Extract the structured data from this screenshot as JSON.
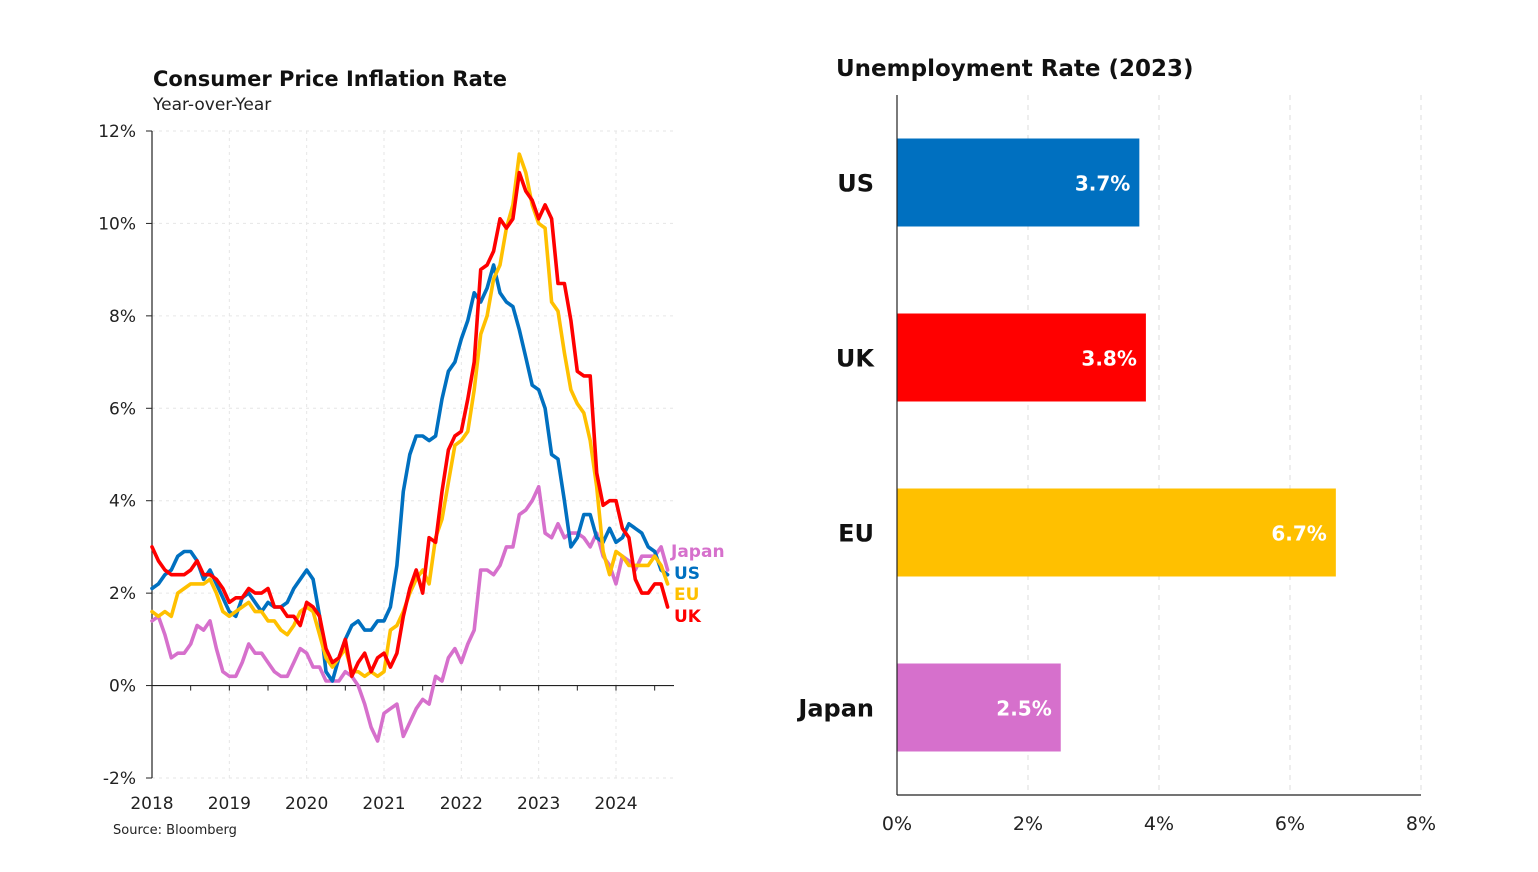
{
  "chart_data": [
    {
      "type": "line",
      "title": "Consumer Price Inflation Rate",
      "subtitle": "Year-over-Year",
      "source": "Source: Bloomberg",
      "xlabel": "",
      "ylabel": "",
      "xlim": [
        2018,
        2024.75
      ],
      "ylim": [
        -2,
        12
      ],
      "yticks": [
        -2,
        0,
        2,
        4,
        6,
        8,
        10,
        12
      ],
      "ytick_labels": [
        "-2%",
        "0%",
        "2%",
        "4%",
        "6%",
        "8%",
        "10%",
        "12%"
      ],
      "xticks": [
        2018,
        2019,
        2020,
        2021,
        2022,
        2023,
        2024
      ],
      "xtick_labels": [
        "2018",
        "2019",
        "2020",
        "2021",
        "2022",
        "2023",
        "2024"
      ],
      "grid": true,
      "x_points": "monthly from 2018.0 in steps of 1/12",
      "series": [
        {
          "name": "Japan",
          "color": "#D670CC",
          "values": [
            1.4,
            1.5,
            1.1,
            0.6,
            0.7,
            0.7,
            0.9,
            1.3,
            1.2,
            1.4,
            0.8,
            0.3,
            0.2,
            0.2,
            0.5,
            0.9,
            0.7,
            0.7,
            0.5,
            0.3,
            0.2,
            0.2,
            0.5,
            0.8,
            0.7,
            0.4,
            0.4,
            0.1,
            0.1,
            0.1,
            0.3,
            0.2,
            0.0,
            -0.4,
            -0.9,
            -1.2,
            -0.6,
            -0.5,
            -0.4,
            -1.1,
            -0.8,
            -0.5,
            -0.3,
            -0.4,
            0.2,
            0.1,
            0.6,
            0.8,
            0.5,
            0.9,
            1.2,
            2.5,
            2.5,
            2.4,
            2.6,
            3.0,
            3.0,
            3.7,
            3.8,
            4.0,
            4.3,
            3.3,
            3.2,
            3.5,
            3.2,
            3.3,
            3.3,
            3.2,
            3.0,
            3.3,
            2.8,
            2.6,
            2.2,
            2.8,
            2.7,
            2.5,
            2.8,
            2.8,
            2.8,
            3.0,
            2.5
          ]
        },
        {
          "name": "US",
          "color": "#0070C0",
          "values": [
            2.1,
            2.2,
            2.4,
            2.5,
            2.8,
            2.9,
            2.9,
            2.7,
            2.3,
            2.5,
            2.2,
            1.9,
            1.6,
            1.5,
            1.9,
            2.0,
            1.8,
            1.6,
            1.8,
            1.7,
            1.7,
            1.8,
            2.1,
            2.3,
            2.5,
            2.3,
            1.5,
            0.3,
            0.1,
            0.6,
            1.0,
            1.3,
            1.4,
            1.2,
            1.2,
            1.4,
            1.4,
            1.7,
            2.6,
            4.2,
            5.0,
            5.4,
            5.4,
            5.3,
            5.4,
            6.2,
            6.8,
            7.0,
            7.5,
            7.9,
            8.5,
            8.3,
            8.6,
            9.1,
            8.5,
            8.3,
            8.2,
            7.7,
            7.1,
            6.5,
            6.4,
            6.0,
            5.0,
            4.9,
            4.0,
            3.0,
            3.2,
            3.7,
            3.7,
            3.2,
            3.1,
            3.4,
            3.1,
            3.2,
            3.5,
            3.4,
            3.3,
            3.0,
            2.9,
            2.5,
            2.4
          ]
        },
        {
          "name": "EU",
          "color": "#FFC000",
          "values": [
            1.6,
            1.5,
            1.6,
            1.5,
            2.0,
            2.1,
            2.2,
            2.2,
            2.2,
            2.3,
            2.0,
            1.6,
            1.5,
            1.6,
            1.7,
            1.8,
            1.6,
            1.6,
            1.4,
            1.4,
            1.2,
            1.1,
            1.3,
            1.6,
            1.7,
            1.6,
            1.1,
            0.6,
            0.4,
            0.6,
            0.8,
            0.3,
            0.3,
            0.2,
            0.3,
            0.2,
            0.3,
            1.2,
            1.3,
            1.6,
            2.0,
            2.3,
            2.5,
            2.2,
            3.2,
            3.6,
            4.4,
            5.2,
            5.3,
            5.5,
            6.4,
            7.6,
            8.0,
            8.8,
            9.1,
            9.9,
            10.4,
            11.5,
            11.1,
            10.4,
            10.0,
            9.9,
            8.3,
            8.1,
            7.2,
            6.4,
            6.1,
            5.9,
            5.3,
            4.3,
            2.9,
            2.4,
            2.9,
            2.8,
            2.6,
            2.6,
            2.6,
            2.6,
            2.8,
            2.6,
            2.2
          ]
        },
        {
          "name": "UK",
          "color": "#FF0000",
          "values": [
            3.0,
            2.7,
            2.5,
            2.4,
            2.4,
            2.4,
            2.5,
            2.7,
            2.4,
            2.4,
            2.3,
            2.1,
            1.8,
            1.9,
            1.9,
            2.1,
            2.0,
            2.0,
            2.1,
            1.7,
            1.7,
            1.5,
            1.5,
            1.3,
            1.8,
            1.7,
            1.5,
            0.8,
            0.5,
            0.6,
            1.0,
            0.2,
            0.5,
            0.7,
            0.3,
            0.6,
            0.7,
            0.4,
            0.7,
            1.5,
            2.1,
            2.5,
            2.0,
            3.2,
            3.1,
            4.2,
            5.1,
            5.4,
            5.5,
            6.2,
            7.0,
            9.0,
            9.1,
            9.4,
            10.1,
            9.9,
            10.1,
            11.1,
            10.7,
            10.5,
            10.1,
            10.4,
            10.1,
            8.7,
            8.7,
            7.9,
            6.8,
            6.7,
            6.7,
            4.6,
            3.9,
            4.0,
            4.0,
            3.4,
            3.2,
            2.3,
            2.0,
            2.0,
            2.2,
            2.2,
            1.7
          ]
        }
      ]
    },
    {
      "type": "bar",
      "orientation": "horizontal",
      "title": "Unemployment Rate (2023)",
      "categories": [
        "US",
        "UK",
        "EU",
        "Japan"
      ],
      "values": [
        3.7,
        3.8,
        6.7,
        2.5
      ],
      "value_labels": [
        "3.7%",
        "3.8%",
        "6.7%",
        "2.5%"
      ],
      "colors": [
        "#0070C0",
        "#FF0000",
        "#FFC000",
        "#D670CC"
      ],
      "xlim": [
        0,
        8
      ],
      "xticks": [
        0,
        2,
        4,
        6,
        8
      ],
      "xtick_labels": [
        "0%",
        "2%",
        "4%",
        "6%",
        "8%"
      ],
      "xlabel": "",
      "ylabel": "",
      "grid": true
    }
  ]
}
